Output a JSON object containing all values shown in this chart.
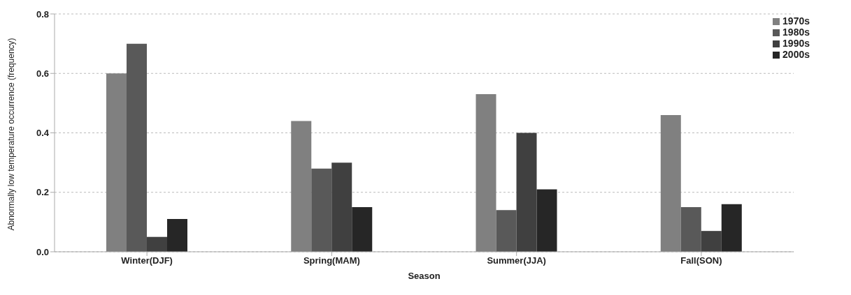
{
  "chart_data": {
    "type": "bar",
    "xlabel": "Season",
    "ylabel": "Abnormally low temperature occurrence (frequency)",
    "categories": [
      "Winter(DJF)",
      "Spring(MAM)",
      "Summer(JJA)",
      "Fall(SON)"
    ],
    "series": [
      {
        "name": "1970s",
        "color": "#808080",
        "values": [
          0.6,
          0.44,
          0.53,
          0.46
        ]
      },
      {
        "name": "1980s",
        "color": "#595959",
        "values": [
          0.7,
          0.28,
          0.14,
          0.15
        ]
      },
      {
        "name": "1990s",
        "color": "#404040",
        "values": [
          0.05,
          0.3,
          0.4,
          0.07
        ]
      },
      {
        "name": "2000s",
        "color": "#262626",
        "values": [
          0.11,
          0.15,
          0.21,
          0.16
        ]
      }
    ],
    "ylim": [
      0,
      0.8
    ],
    "yticks": [
      {
        "value": 0,
        "label": "0.0"
      },
      {
        "value": 0.2,
        "label": "0.2"
      },
      {
        "value": 0.4,
        "label": "0.4"
      },
      {
        "value": 0.6,
        "label": "0.6"
      },
      {
        "value": 0.8,
        "label": "0.8"
      }
    ],
    "grid": "y",
    "legend": "top right"
  }
}
